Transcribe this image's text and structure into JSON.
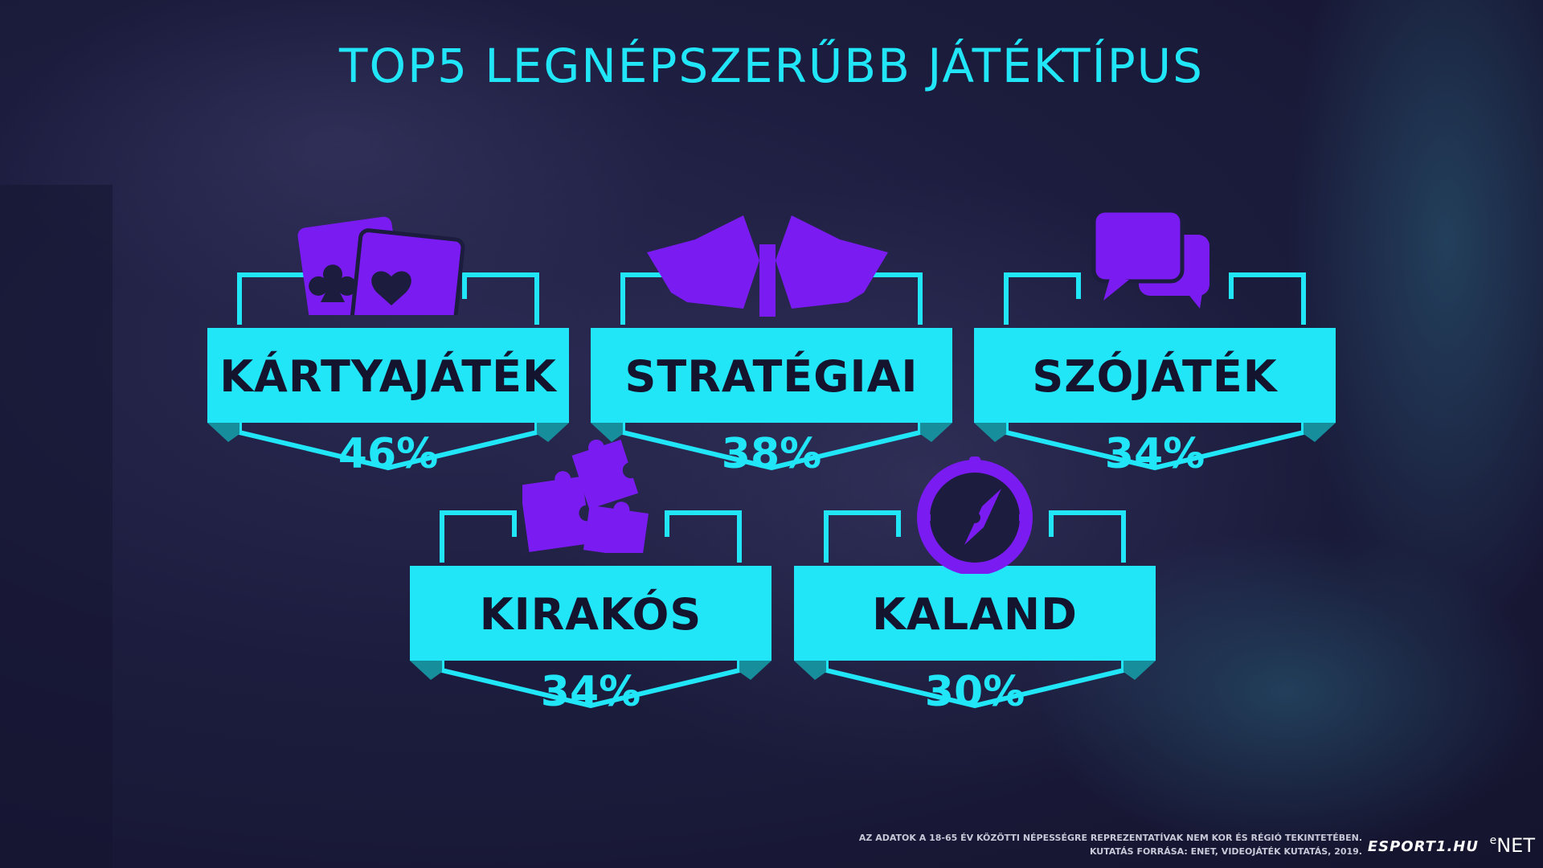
{
  "title": "TOP5 LEGNÉPSZERŰBB JÁTÉKTÍPUS",
  "colors": {
    "accent": "#21e6f7",
    "icon": "#7a1bf2",
    "background": "#1c1c3e"
  },
  "cards": [
    {
      "label": "KÁRTYAJÁTÉK",
      "percent": "46%",
      "value": 46,
      "icon": "playing-cards-icon"
    },
    {
      "label": "STRATÉGIAI",
      "percent": "38%",
      "value": 38,
      "icon": "flags-icon"
    },
    {
      "label": "SZÓJÁTÉK",
      "percent": "34%",
      "value": 34,
      "icon": "speech-bubbles-icon"
    },
    {
      "label": "KIRAKÓS",
      "percent": "34%",
      "value": 34,
      "icon": "puzzle-icon"
    },
    {
      "label": "KALAND",
      "percent": "30%",
      "value": 30,
      "icon": "compass-icon"
    }
  ],
  "footer": {
    "line1": "AZ ADATOK A 18-65 ÉV KÖZÖTTI NÉPESSÉGRE REPREZENTATÍVAK NEM KOR ÉS RÉGIÓ TEKINTETÉBEN.",
    "line2": "KUTATÁS FORRÁSA: ENET,  VIDEOJÁTÉK KUTATÁS, 2019."
  },
  "logos": {
    "esport": "ESPORT1.HU",
    "enet": "NET"
  }
}
